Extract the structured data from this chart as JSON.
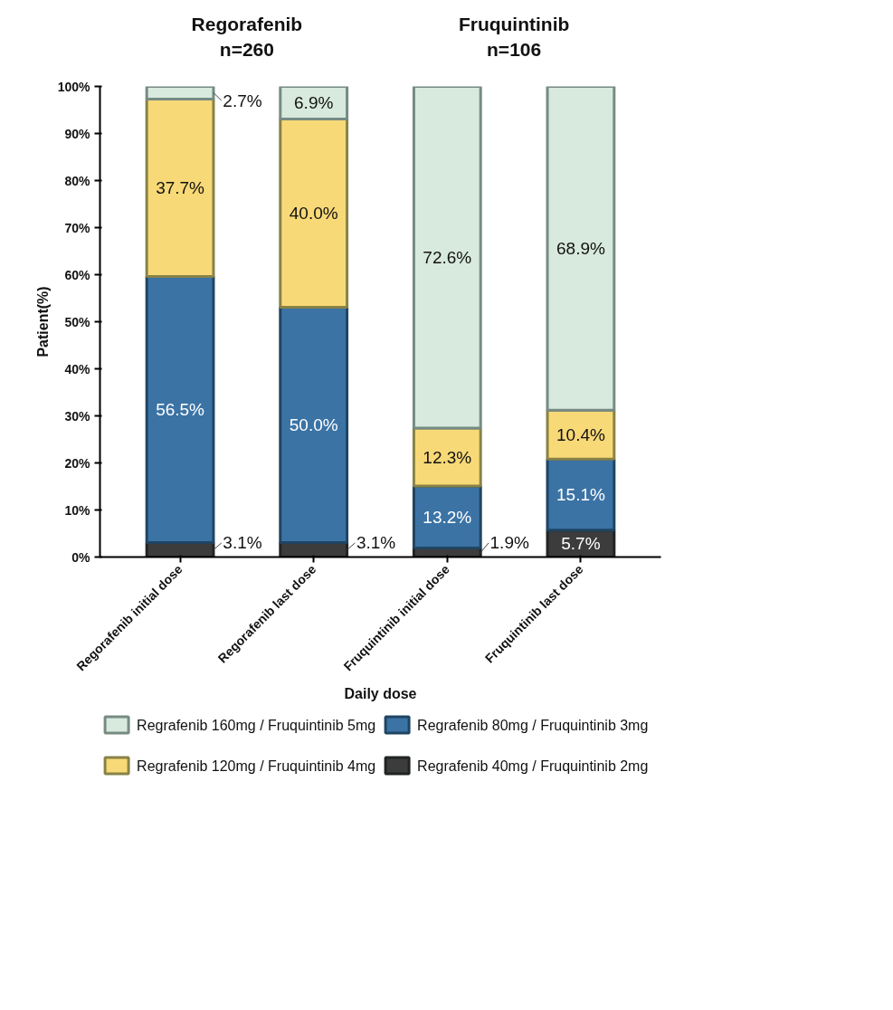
{
  "chart_data": {
    "type": "bar",
    "stacked": true,
    "xlabel": "Daily dose",
    "ylabel": "Patient(%)",
    "categories": [
      "Regorafenib initial dose",
      "Regorafenib last dose",
      "Fruquintinib initial dose",
      "Fruquintinib last dose"
    ],
    "series": [
      {
        "name": "Regrafenib 40mg / Fruquintinib 2mg",
        "color": "#3c3c3c",
        "values": [
          3.1,
          3.1,
          1.9,
          5.7
        ],
        "value_labels": [
          "3.1%",
          "3.1%",
          "1.9%",
          "5.7%"
        ]
      },
      {
        "name": "Regrafenib 80mg / Fruquintinib 3mg",
        "color": "#3b73a5",
        "values": [
          56.5,
          50.0,
          13.2,
          15.1
        ],
        "value_labels": [
          "56.5%",
          "50.0%",
          "13.2%",
          "15.1%"
        ]
      },
      {
        "name": "Regrafenib 120mg / Fruquintinib 4mg",
        "color": "#f8d977",
        "values": [
          37.7,
          40.0,
          12.3,
          10.4
        ],
        "value_labels": [
          "37.7%",
          "40.0%",
          "12.3%",
          "10.4%"
        ]
      },
      {
        "name": "Regrafenib 160mg / Fruquintinib 5mg",
        "color": "#d8e9dd",
        "values": [
          2.7,
          6.9,
          72.6,
          68.9
        ],
        "value_labels": [
          "2.7%",
          "6.9%",
          "72.6%",
          "68.9%"
        ]
      }
    ],
    "annotations": [
      "Regorafenib\nn=260",
      "Fruquintinib\nn=106"
    ],
    "ylim": [
      0,
      100
    ],
    "yticks": [
      {
        "value": 0,
        "label": "0%"
      },
      {
        "value": 10,
        "label": "10%"
      },
      {
        "value": 20,
        "label": "20%"
      },
      {
        "value": 30,
        "label": "30%"
      },
      {
        "value": 40,
        "label": "40%"
      },
      {
        "value": 50,
        "label": "50%"
      },
      {
        "value": 60,
        "label": "60%"
      },
      {
        "value": 70,
        "label": "70%"
      },
      {
        "value": 80,
        "label": "80%"
      },
      {
        "value": 90,
        "label": "90%"
      },
      {
        "value": 100,
        "label": "100%"
      }
    ],
    "grid": false,
    "legend": "bottom"
  }
}
